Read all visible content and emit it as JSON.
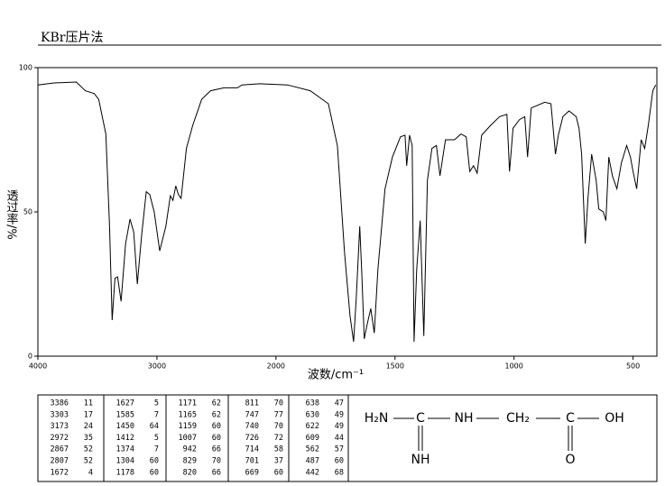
{
  "chart_data": {
    "type": "line",
    "title": "KBr压片法",
    "xlabel": "波数/cm⁻¹",
    "ylabel": "透过率/%",
    "xlim": [
      4000,
      400
    ],
    "ylim": [
      0,
      100
    ],
    "xticks": [
      4000,
      3000,
      2000,
      1500,
      1000,
      500
    ],
    "yticks": [
      0,
      50,
      100
    ],
    "color": "#000000",
    "x": [
      4000,
      3865,
      3677,
      3602,
      3526,
      3489,
      3429,
      3398,
      3376,
      3353,
      3331,
      3301,
      3263,
      3226,
      3195,
      3165,
      3128,
      3090,
      3060,
      3023,
      2977,
      2925,
      2887,
      2865,
      2842,
      2820,
      2797,
      2752,
      2699,
      2624,
      2549,
      2436,
      2323,
      2286,
      2135,
      1951,
      1856,
      1780,
      1742,
      1712,
      1689,
      1674,
      1663,
      1648,
      1640,
      1629,
      1617,
      1602,
      1587,
      1572,
      1542,
      1511,
      1477,
      1458,
      1451,
      1439,
      1428,
      1420,
      1409,
      1394,
      1379,
      1364,
      1345,
      1326,
      1311,
      1288,
      1250,
      1223,
      1201,
      1186,
      1170,
      1155,
      1136,
      1098,
      1061,
      1030,
      1019,
      1004,
      977,
      955,
      943,
      928,
      871,
      845,
      826,
      814,
      795,
      769,
      739,
      727,
      716,
      701,
      689,
      674,
      655,
      644,
      625,
      614,
      602,
      587,
      568,
      549,
      527,
      511,
      500,
      485,
      466,
      451,
      436,
      417,
      405
    ],
    "y": [
      94,
      94.7,
      95,
      92,
      91,
      89,
      77,
      45,
      12.5,
      27,
      27.5,
      19,
      39,
      47.5,
      43,
      25,
      42,
      57,
      56,
      50,
      36.5,
      45,
      55.6,
      54,
      59,
      56,
      54.7,
      72,
      80,
      89,
      92,
      93,
      93,
      94,
      94.4,
      94,
      92,
      87.5,
      73,
      36,
      14,
      5,
      20,
      45,
      30,
      6,
      11,
      16.5,
      8,
      30,
      58,
      69,
      76,
      76.6,
      66,
      76.6,
      73,
      5,
      30,
      47,
      7,
      61,
      72,
      73,
      62.5,
      75,
      75,
      77,
      76,
      64,
      66,
      63.4,
      76.6,
      80,
      83,
      83.8,
      64,
      79,
      82,
      83,
      69,
      86,
      88,
      87.5,
      70,
      76.6,
      83,
      85,
      83,
      79,
      70,
      39,
      55,
      70,
      61,
      51,
      50,
      47,
      69,
      62.5,
      58,
      67,
      73,
      69,
      64,
      58,
      75,
      72,
      80,
      92,
      94
    ]
  },
  "peak_table": {
    "rows": [
      [
        "3386",
        "11",
        "1627",
        "5",
        "1171",
        "62",
        "811",
        "70",
        "638",
        "47"
      ],
      [
        "3303",
        "17",
        "1585",
        "7",
        "1165",
        "62",
        "747",
        "77",
        "630",
        "49"
      ],
      [
        "3173",
        "24",
        "1450",
        "64",
        "1159",
        "60",
        "740",
        "70",
        "622",
        "49"
      ],
      [
        "2972",
        "35",
        "1412",
        "5",
        "1007",
        "60",
        "726",
        "72",
        "609",
        "44"
      ],
      [
        "2867",
        "52",
        "1374",
        "7",
        "942",
        "66",
        "714",
        "58",
        "562",
        "57"
      ],
      [
        "2807",
        "52",
        "1304",
        "60",
        "829",
        "70",
        "701",
        "37",
        "487",
        "60"
      ],
      [
        "1672",
        "4",
        "1178",
        "60",
        "820",
        "66",
        "669",
        "60",
        "442",
        "68"
      ]
    ]
  },
  "structure": {
    "atoms": [
      "H₂N",
      "C",
      "NH",
      "CH₂",
      "C",
      "OH",
      "NH",
      "O"
    ]
  }
}
